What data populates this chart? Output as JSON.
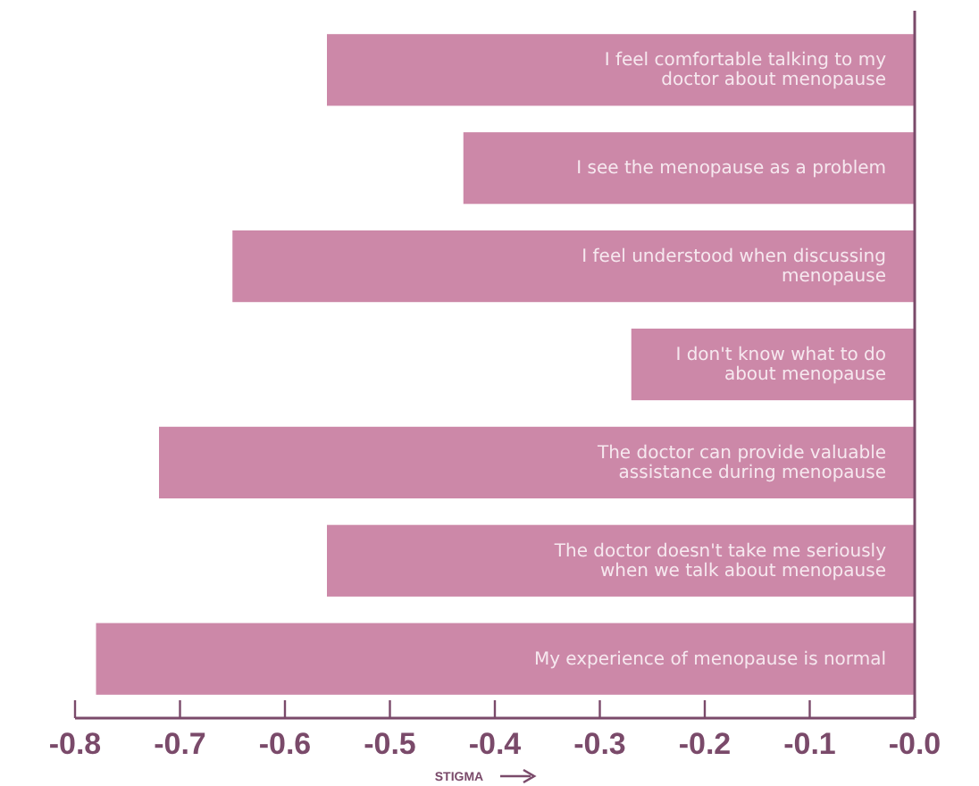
{
  "chart_data": {
    "type": "bar",
    "orientation": "horizontal",
    "xlabel": "STIGMA",
    "categories": [
      "I feel comfortable talking to my doctor about menopause",
      "I see the menopause as a problem",
      "I feel understood when discussing menopause",
      "I don't know what to do about menopause",
      "The doctor can provide valuable assistance during menopause",
      "The doctor doesn't take me seriously when we talk about menopause",
      "My experience of menopause is normal"
    ],
    "values": [
      -0.56,
      -0.43,
      -0.65,
      -0.27,
      -0.72,
      -0.56,
      -0.78
    ],
    "color": "#cc88a8",
    "xlim": [
      -0.8,
      0
    ],
    "xticks": [
      -0.8,
      -0.7,
      -0.6,
      -0.5,
      -0.4,
      -0.3,
      -0.2,
      -0.1,
      {
        "value": 0,
        "label": "-0.0"
      }
    ],
    "grid": false
  }
}
